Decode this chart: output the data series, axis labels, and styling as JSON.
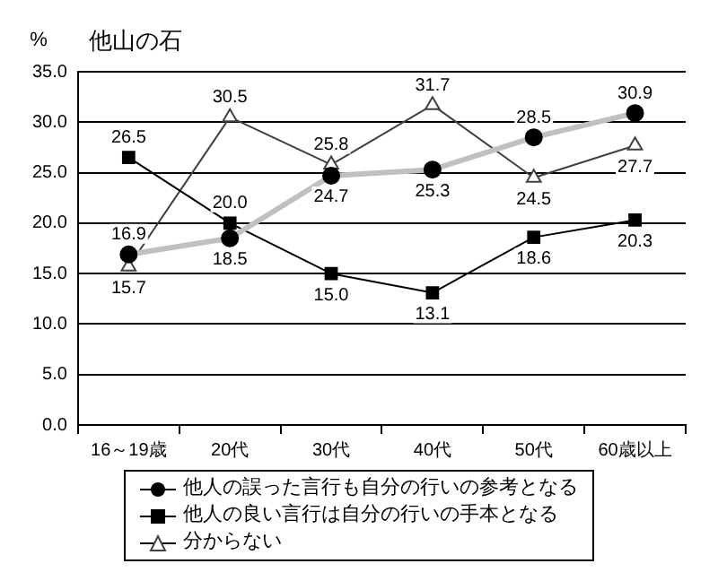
{
  "chart_data": {
    "type": "line",
    "title": "他山の石",
    "ylabel": "%",
    "categories": [
      "16～19歳",
      "20代",
      "30代",
      "40代",
      "50代",
      "60歳以上"
    ],
    "series": [
      {
        "name": "他人の誤った言行も自分の行いの参考となる",
        "color": "#c0c0c0",
        "marker": "circle",
        "values": [
          16.9,
          18.5,
          24.7,
          25.3,
          28.5,
          30.9
        ],
        "value_labels": [
          "16.9",
          "18.5",
          "24.7",
          "25.3",
          "28.5",
          "30.9"
        ]
      },
      {
        "name": "他人の良い言行は自分の行いの手本となる",
        "color": "#000000",
        "marker": "square",
        "values": [
          26.5,
          20.0,
          15.0,
          13.1,
          18.6,
          20.3
        ],
        "value_labels": [
          "26.5",
          "20.0",
          "15.0",
          "13.1",
          "18.6",
          "20.3"
        ]
      },
      {
        "name": "分からない",
        "color": "#404040",
        "marker": "triangle",
        "values": [
          15.7,
          30.5,
          25.8,
          31.7,
          24.5,
          27.7
        ],
        "value_labels": [
          "15.7",
          "30.5",
          "25.8",
          "31.7",
          "24.5",
          "27.7"
        ]
      }
    ],
    "ylim": [
      0,
      35
    ],
    "yticks": [
      {
        "value": 0,
        "label": "0.0"
      },
      {
        "value": 5,
        "label": "5.0"
      },
      {
        "value": 10,
        "label": "10.0"
      },
      {
        "value": 15,
        "label": "15.0"
      },
      {
        "value": 20,
        "label": "20.0"
      },
      {
        "value": 25,
        "label": "25.0"
      },
      {
        "value": 30,
        "label": "30.0"
      },
      {
        "value": 35,
        "label": "35.0"
      }
    ],
    "grid": "y",
    "legend": "bottom"
  }
}
